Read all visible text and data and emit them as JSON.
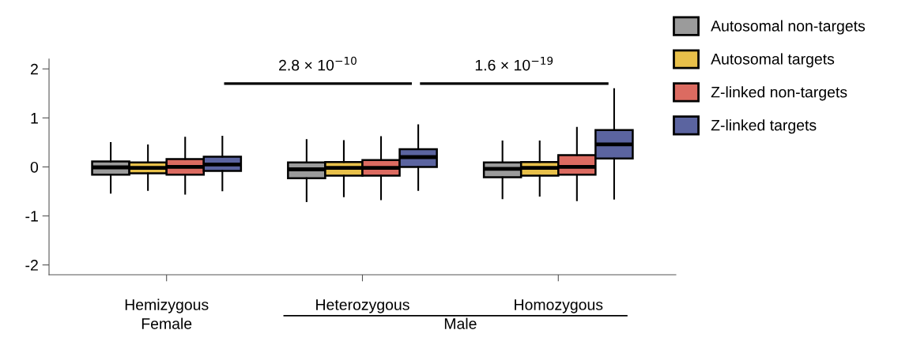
{
  "chart_data": {
    "type": "box",
    "categories": [
      "Hemizygous",
      "Heterozygous",
      "Homozygous"
    ],
    "series": [
      {
        "name": "Autosomal non-targets",
        "color": "#9b9b9b",
        "boxes": [
          {
            "low": -0.53,
            "q1": -0.16,
            "median": -0.01,
            "q3": 0.11,
            "high": 0.49
          },
          {
            "low": -0.7,
            "q1": -0.23,
            "median": -0.05,
            "q3": 0.09,
            "high": 0.55
          },
          {
            "low": -0.64,
            "q1": -0.21,
            "median": -0.04,
            "q3": 0.09,
            "high": 0.52
          }
        ]
      },
      {
        "name": "Autosomal targets",
        "color": "#e8c04a",
        "boxes": [
          {
            "low": -0.47,
            "q1": -0.13,
            "median": -0.02,
            "q3": 0.09,
            "high": 0.44
          },
          {
            "low": -0.6,
            "q1": -0.18,
            "median": -0.02,
            "q3": 0.1,
            "high": 0.53
          },
          {
            "low": -0.59,
            "q1": -0.18,
            "median": -0.02,
            "q3": 0.1,
            "high": 0.52
          }
        ]
      },
      {
        "name": "Z-linked non-targets",
        "color": "#dc6b61",
        "boxes": [
          {
            "low": -0.55,
            "q1": -0.16,
            "median": 0.0,
            "q3": 0.16,
            "high": 0.6
          },
          {
            "low": -0.66,
            "q1": -0.18,
            "median": -0.02,
            "q3": 0.14,
            "high": 0.61
          },
          {
            "low": -0.68,
            "q1": -0.16,
            "median": 0.0,
            "q3": 0.24,
            "high": 0.8
          }
        ]
      },
      {
        "name": "Z-linked targets",
        "color": "#5b64a0",
        "boxes": [
          {
            "low": -0.48,
            "q1": -0.08,
            "median": 0.05,
            "q3": 0.21,
            "high": 0.62
          },
          {
            "low": -0.47,
            "q1": 0.0,
            "median": 0.2,
            "q3": 0.36,
            "high": 0.85
          },
          {
            "low": -0.65,
            "q1": 0.17,
            "median": 0.46,
            "q3": 0.75,
            "high": 1.59
          }
        ]
      }
    ],
    "ylim": [
      -2.2,
      2.2
    ],
    "yticks": [
      -2,
      -1,
      0,
      1,
      2
    ],
    "grid": false,
    "legend": "top right",
    "annotations": [
      "2.8 × 10$^{−10}$",
      "1.6 × 10$^{−19}$",
      "Female",
      "Male"
    ]
  }
}
